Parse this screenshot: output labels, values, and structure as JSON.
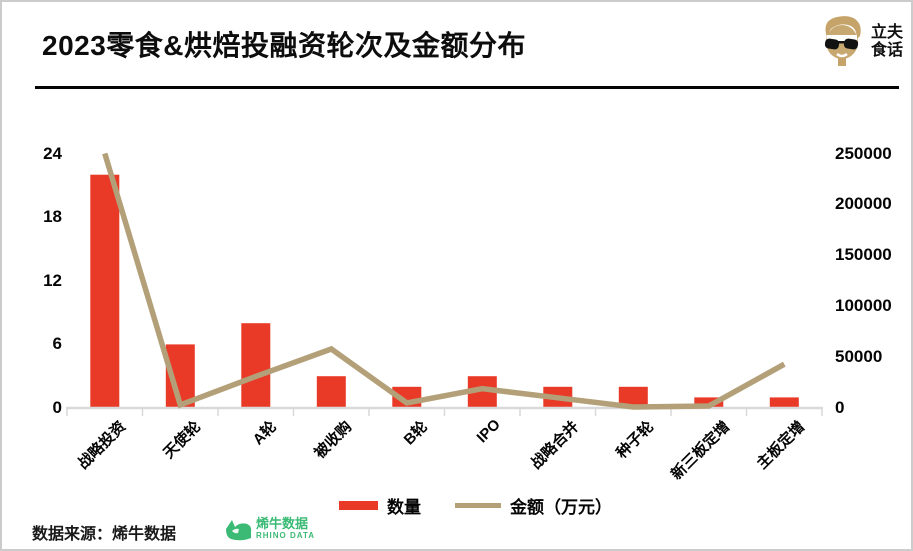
{
  "header": {
    "title": "2023零食&烘焙投融资轮次及金额分布",
    "brand": {
      "icon": "face-with-sunglasses-icon",
      "icon_color": "#c5a369",
      "name_line1": "立夫",
      "name_line2": "食话"
    }
  },
  "chart_data": {
    "type": "combo-bar-line",
    "categories": [
      "战略投资",
      "天使轮",
      "A轮",
      "被收购",
      "B轮",
      "IPO",
      "战略合并",
      "种子轮",
      "新三板定增",
      "主板定增"
    ],
    "series": [
      {
        "name": "数量",
        "type": "bar",
        "axis": "left",
        "color": "#e93a28",
        "values": [
          22,
          6,
          8,
          3,
          2,
          3,
          2,
          2,
          1,
          1
        ]
      },
      {
        "name": "金额（万元）",
        "type": "line",
        "axis": "right",
        "color": "#b3a078",
        "values": [
          250000,
          3000,
          31000,
          58000,
          5000,
          19000,
          10000,
          1000,
          2000,
          43000
        ]
      }
    ],
    "left_axis": {
      "range": [
        0,
        24
      ],
      "ticks": [
        0,
        6,
        12,
        18,
        24
      ]
    },
    "right_axis": {
      "range": [
        0,
        250000
      ],
      "ticks": [
        0,
        50000,
        100000,
        150000,
        200000,
        250000
      ]
    },
    "grid": false,
    "legend_position": "bottom-center",
    "axis_color": "#d9d9d9"
  },
  "footer": {
    "source_text": "数据来源：烯牛数据",
    "rhino_logo": {
      "icon": "rhino-icon",
      "color": "#3bba75",
      "name": "烯牛数据",
      "subtext": "RHINO DATA"
    }
  }
}
